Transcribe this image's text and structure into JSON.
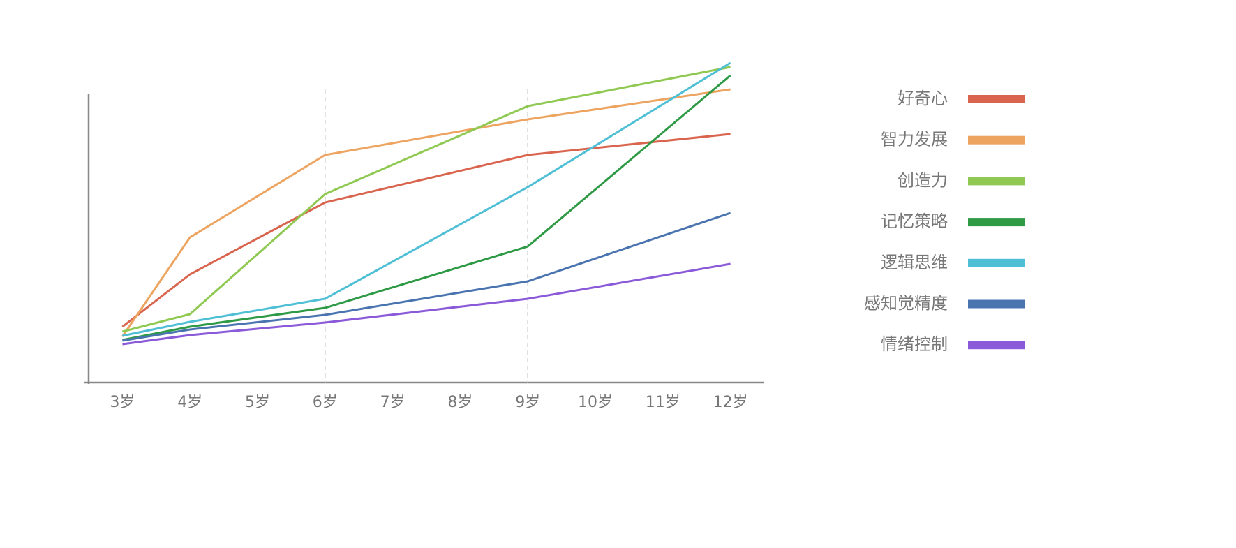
{
  "chart_data": {
    "type": "line",
    "x": [
      3,
      4,
      6,
      9,
      12
    ],
    "xlim": [
      2.5,
      12.5
    ],
    "xticks": [
      {
        "value": 3,
        "label": "3岁"
      },
      {
        "value": 4,
        "label": "4岁"
      },
      {
        "value": 5,
        "label": "5岁"
      },
      {
        "value": 6,
        "label": "6岁"
      },
      {
        "value": 7,
        "label": "7岁"
      },
      {
        "value": 8,
        "label": "8岁"
      },
      {
        "value": 9,
        "label": "9岁"
      },
      {
        "value": 10,
        "label": "10岁"
      },
      {
        "value": 11,
        "label": "11岁"
      },
      {
        "value": 12,
        "label": "12岁"
      }
    ],
    "ylim": [
      0,
      100
    ],
    "reference_lines": [
      6,
      9
    ],
    "legend": "right",
    "series": [
      {
        "name": "好奇心",
        "color": "#d9654f",
        "values": [
          16,
          31,
          51.6,
          65.2,
          71.2
        ]
      },
      {
        "name": "智力发展",
        "color": "#eda460",
        "values": [
          13.2,
          41.6,
          65.2,
          75.4,
          84
        ]
      },
      {
        "name": "创造力",
        "color": "#8fc952",
        "values": [
          14.6,
          19.6,
          54,
          79.2,
          90.4
        ]
      },
      {
        "name": "记忆策略",
        "color": "#2e9a45",
        "values": [
          12.2,
          16,
          21.4,
          39,
          88
        ]
      },
      {
        "name": "逻辑思维",
        "color": "#4fbfd6",
        "values": [
          13.4,
          17.4,
          24,
          56,
          91.6
        ]
      },
      {
        "name": "感知觉精度",
        "color": "#4a74b0",
        "values": [
          12,
          15.2,
          19.4,
          29,
          48.6
        ]
      },
      {
        "name": "情绪控制",
        "color": "#8a5ad9",
        "values": [
          11,
          13.6,
          17.2,
          24,
          34
        ]
      }
    ]
  }
}
